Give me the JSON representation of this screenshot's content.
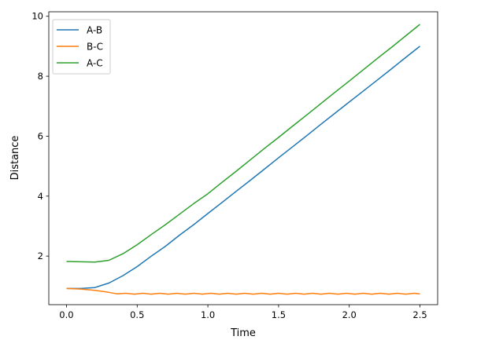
{
  "chart_data": {
    "type": "line",
    "title": "",
    "xlabel": "Time",
    "ylabel": "Distance",
    "xlim": [
      -0.125,
      2.625
    ],
    "ylim": [
      0.38,
      10.15
    ],
    "xticks": [
      0.0,
      0.5,
      1.0,
      1.5,
      2.0,
      2.5
    ],
    "xtick_labels": [
      "0.0",
      "0.5",
      "1.0",
      "1.5",
      "2.0",
      "2.5"
    ],
    "yticks": [
      2,
      4,
      6,
      8,
      10
    ],
    "ytick_labels": [
      "2",
      "4",
      "6",
      "8",
      "10"
    ],
    "grid": false,
    "legend_position": "top-left",
    "series": [
      {
        "name": "A-B",
        "color": "#1f77b4",
        "x": [
          0,
          0.1,
          0.2,
          0.3,
          0.4,
          0.5,
          0.6,
          0.7,
          0.8,
          0.9,
          1.0,
          1.1,
          1.2,
          1.3,
          1.4,
          1.5,
          1.6,
          1.7,
          1.8,
          1.9,
          2.0,
          2.1,
          2.2,
          2.3,
          2.4,
          2.5
        ],
        "values": [
          0.92,
          0.92,
          0.95,
          1.1,
          1.35,
          1.65,
          2.0,
          2.33,
          2.7,
          3.05,
          3.42,
          3.79,
          4.16,
          4.53,
          4.9,
          5.28,
          5.65,
          6.02,
          6.4,
          6.77,
          7.14,
          7.51,
          7.88,
          8.25,
          8.63,
          9.0
        ]
      },
      {
        "name": "B-C",
        "color": "#ff7f0e",
        "x": [
          0,
          0.1,
          0.2,
          0.3,
          0.36,
          0.42,
          0.48,
          0.54,
          0.6,
          0.66,
          0.72,
          0.78,
          0.84,
          0.9,
          0.96,
          1.02,
          1.08,
          1.14,
          1.2,
          1.26,
          1.32,
          1.38,
          1.44,
          1.5,
          1.56,
          1.62,
          1.68,
          1.74,
          1.8,
          1.86,
          1.92,
          1.98,
          2.04,
          2.1,
          2.16,
          2.22,
          2.28,
          2.34,
          2.4,
          2.46,
          2.5
        ],
        "values": [
          0.92,
          0.9,
          0.86,
          0.79,
          0.74,
          0.76,
          0.73,
          0.76,
          0.73,
          0.76,
          0.73,
          0.76,
          0.73,
          0.76,
          0.73,
          0.76,
          0.73,
          0.76,
          0.73,
          0.76,
          0.73,
          0.76,
          0.73,
          0.76,
          0.73,
          0.76,
          0.73,
          0.76,
          0.73,
          0.76,
          0.73,
          0.76,
          0.73,
          0.76,
          0.73,
          0.76,
          0.73,
          0.76,
          0.73,
          0.76,
          0.74
        ]
      },
      {
        "name": "A-C",
        "color": "#2ca02c",
        "x": [
          0,
          0.1,
          0.2,
          0.3,
          0.4,
          0.5,
          0.6,
          0.7,
          0.8,
          0.9,
          1.0,
          1.1,
          1.2,
          1.3,
          1.4,
          1.5,
          1.6,
          1.7,
          1.8,
          1.9,
          2.0,
          2.1,
          2.2,
          2.3,
          2.4,
          2.5
        ],
        "values": [
          1.82,
          1.81,
          1.8,
          1.86,
          2.08,
          2.38,
          2.72,
          3.05,
          3.4,
          3.75,
          4.08,
          4.46,
          4.83,
          5.21,
          5.59,
          5.96,
          6.34,
          6.71,
          7.09,
          7.47,
          7.84,
          8.22,
          8.6,
          8.97,
          9.35,
          9.73
        ]
      }
    ]
  }
}
